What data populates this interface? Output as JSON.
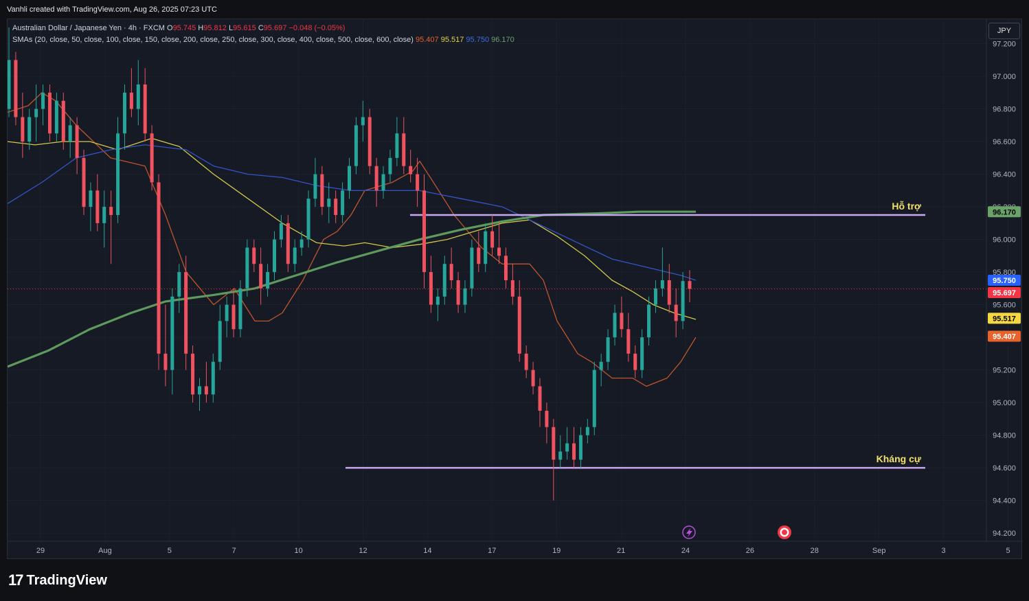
{
  "header": {
    "credit": "Vanhli created with TradingView.com, Aug 26, 2025 07:23 UTC"
  },
  "legend": {
    "symbol": "Australian Dollar / Japanese Yen · 4h · FXCM",
    "o_label": "O",
    "o": "95.745",
    "h_label": "H",
    "h": "95.812",
    "l_label": "L",
    "l": "95.615",
    "c_label": "C",
    "c": "95.697",
    "change": "−0.048 (−0.05%)",
    "sma_label": "SMAs (20, close, 50, close, 100, close, 150, close, 200, close, 250, close, 300, close, 400, close, 500, close, 600, close)",
    "sma_values": [
      {
        "value": "95.407",
        "color": "#e8622b"
      },
      {
        "value": "95.517",
        "color": "#e3d84a"
      },
      {
        "value": "95.750",
        "color": "#3a6fe0"
      },
      {
        "value": "96.170",
        "color": "#6aa36a"
      }
    ]
  },
  "currency_button": "JPY",
  "branding": {
    "logo_mark": "17",
    "logo_text": "TradingView"
  },
  "colors": {
    "up": "#26a69a",
    "down": "#f0525f",
    "background": "#161a25",
    "grid": "#222631",
    "level_line": "#c8a8f0",
    "annotation": "#f5e26a"
  },
  "chart_data": {
    "type": "candlestick",
    "title": "Australian Dollar / Japanese Yen · 4h · FXCM",
    "yaxis": {
      "ticks": [
        "97.200",
        "97.000",
        "96.800",
        "96.600",
        "96.400",
        "96.200",
        "96.000",
        "95.800",
        "95.600",
        "95.400",
        "95.200",
        "95.000",
        "94.800",
        "94.600",
        "94.400",
        "94.200"
      ],
      "ylim": [
        94.15,
        97.35
      ]
    },
    "xaxis": {
      "ticks": [
        "29",
        "Aug",
        "5",
        "7",
        "10",
        "12",
        "14",
        "17",
        "19",
        "21",
        "24",
        "26",
        "28",
        "Sep",
        "3",
        "5"
      ]
    },
    "price_labels": [
      {
        "value": "96.170",
        "color": "#6aa36a"
      },
      {
        "value": "95.750",
        "color": "#2962ff"
      },
      {
        "value": "95.697",
        "color": "#f23645"
      },
      {
        "value": "95.517",
        "color": "#f5d742"
      },
      {
        "value": "95.407",
        "color": "#e8622b"
      }
    ],
    "current_price": 95.697,
    "levels": [
      {
        "label": "Hỗ trợ",
        "value": 96.15
      },
      {
        "label": "Kháng cự",
        "value": 94.6
      }
    ],
    "candles": [
      {
        "o": 96.8,
        "h": 97.3,
        "l": 96.75,
        "c": 97.1
      },
      {
        "o": 97.1,
        "h": 97.15,
        "l": 96.7,
        "c": 96.75
      },
      {
        "o": 96.75,
        "h": 96.9,
        "l": 96.5,
        "c": 96.6
      },
      {
        "o": 96.6,
        "h": 96.8,
        "l": 96.55,
        "c": 96.75
      },
      {
        "o": 96.75,
        "h": 96.95,
        "l": 96.6,
        "c": 96.8
      },
      {
        "o": 96.8,
        "h": 96.95,
        "l": 96.7,
        "c": 96.9
      },
      {
        "o": 96.9,
        "h": 96.95,
        "l": 96.6,
        "c": 96.65
      },
      {
        "o": 96.65,
        "h": 96.9,
        "l": 96.6,
        "c": 96.85
      },
      {
        "o": 96.85,
        "h": 96.9,
        "l": 96.55,
        "c": 96.6
      },
      {
        "o": 96.6,
        "h": 96.75,
        "l": 96.5,
        "c": 96.7
      },
      {
        "o": 96.7,
        "h": 96.75,
        "l": 96.4,
        "c": 96.5
      },
      {
        "o": 96.5,
        "h": 96.55,
        "l": 96.15,
        "c": 96.2
      },
      {
        "o": 96.2,
        "h": 96.35,
        "l": 96.05,
        "c": 96.3
      },
      {
        "o": 96.3,
        "h": 96.4,
        "l": 96.05,
        "c": 96.1
      },
      {
        "o": 96.1,
        "h": 96.3,
        "l": 95.95,
        "c": 96.2
      },
      {
        "o": 96.2,
        "h": 96.3,
        "l": 95.85,
        "c": 96.15
      },
      {
        "o": 96.15,
        "h": 96.75,
        "l": 96.1,
        "c": 96.65
      },
      {
        "o": 96.65,
        "h": 96.95,
        "l": 96.55,
        "c": 96.9
      },
      {
        "o": 96.9,
        "h": 97.05,
        "l": 96.75,
        "c": 96.8
      },
      {
        "o": 96.8,
        "h": 97.1,
        "l": 96.7,
        "c": 96.95
      },
      {
        "o": 96.95,
        "h": 97.05,
        "l": 96.6,
        "c": 96.65
      },
      {
        "o": 96.65,
        "h": 96.7,
        "l": 96.3,
        "c": 96.35
      },
      {
        "o": 96.35,
        "h": 96.4,
        "l": 95.2,
        "c": 95.3
      },
      {
        "o": 95.3,
        "h": 95.6,
        "l": 95.1,
        "c": 95.2
      },
      {
        "o": 95.2,
        "h": 95.7,
        "l": 95.05,
        "c": 95.65
      },
      {
        "o": 95.65,
        "h": 95.85,
        "l": 95.55,
        "c": 95.8
      },
      {
        "o": 95.8,
        "h": 95.9,
        "l": 95.2,
        "c": 95.3
      },
      {
        "o": 95.3,
        "h": 95.35,
        "l": 95.0,
        "c": 95.05
      },
      {
        "o": 95.05,
        "h": 95.15,
        "l": 94.95,
        "c": 95.1
      },
      {
        "o": 95.1,
        "h": 95.25,
        "l": 95.0,
        "c": 95.05
      },
      {
        "o": 95.05,
        "h": 95.3,
        "l": 95.0,
        "c": 95.25
      },
      {
        "o": 95.25,
        "h": 95.6,
        "l": 95.2,
        "c": 95.5
      },
      {
        "o": 95.5,
        "h": 95.65,
        "l": 95.4,
        "c": 95.6
      },
      {
        "o": 95.6,
        "h": 95.7,
        "l": 95.4,
        "c": 95.45
      },
      {
        "o": 95.45,
        "h": 95.75,
        "l": 95.4,
        "c": 95.7
      },
      {
        "o": 95.7,
        "h": 96.0,
        "l": 95.65,
        "c": 95.95
      },
      {
        "o": 95.95,
        "h": 96.0,
        "l": 95.8,
        "c": 95.85
      },
      {
        "o": 95.85,
        "h": 95.95,
        "l": 95.6,
        "c": 95.7
      },
      {
        "o": 95.7,
        "h": 95.85,
        "l": 95.65,
        "c": 95.8
      },
      {
        "o": 95.8,
        "h": 96.05,
        "l": 95.75,
        "c": 96.0
      },
      {
        "o": 96.0,
        "h": 96.15,
        "l": 95.95,
        "c": 96.1
      },
      {
        "o": 96.1,
        "h": 96.15,
        "l": 95.8,
        "c": 95.85
      },
      {
        "o": 95.85,
        "h": 96.0,
        "l": 95.8,
        "c": 95.95
      },
      {
        "o": 95.95,
        "h": 96.05,
        "l": 95.9,
        "c": 96.0
      },
      {
        "o": 96.0,
        "h": 96.3,
        "l": 95.95,
        "c": 96.25
      },
      {
        "o": 96.25,
        "h": 96.5,
        "l": 96.2,
        "c": 96.4
      },
      {
        "o": 96.4,
        "h": 96.45,
        "l": 96.15,
        "c": 96.2
      },
      {
        "o": 96.2,
        "h": 96.35,
        "l": 96.1,
        "c": 96.25
      },
      {
        "o": 96.25,
        "h": 96.3,
        "l": 96.1,
        "c": 96.15
      },
      {
        "o": 96.15,
        "h": 96.35,
        "l": 96.1,
        "c": 96.3
      },
      {
        "o": 96.3,
        "h": 96.5,
        "l": 96.25,
        "c": 96.45
      },
      {
        "o": 96.45,
        "h": 96.75,
        "l": 96.4,
        "c": 96.7
      },
      {
        "o": 96.7,
        "h": 96.85,
        "l": 96.6,
        "c": 96.75
      },
      {
        "o": 96.75,
        "h": 96.8,
        "l": 96.4,
        "c": 96.45
      },
      {
        "o": 96.45,
        "h": 96.5,
        "l": 96.2,
        "c": 96.3
      },
      {
        "o": 96.3,
        "h": 96.45,
        "l": 96.25,
        "c": 96.4
      },
      {
        "o": 96.4,
        "h": 96.55,
        "l": 96.35,
        "c": 96.5
      },
      {
        "o": 96.5,
        "h": 96.75,
        "l": 96.45,
        "c": 96.65
      },
      {
        "o": 96.65,
        "h": 96.75,
        "l": 96.4,
        "c": 96.45
      },
      {
        "o": 96.45,
        "h": 96.55,
        "l": 96.35,
        "c": 96.4
      },
      {
        "o": 96.4,
        "h": 96.5,
        "l": 96.2,
        "c": 96.3
      },
      {
        "o": 96.3,
        "h": 96.4,
        "l": 95.7,
        "c": 95.8
      },
      {
        "o": 95.8,
        "h": 95.9,
        "l": 95.55,
        "c": 95.6
      },
      {
        "o": 95.6,
        "h": 95.7,
        "l": 95.5,
        "c": 95.65
      },
      {
        "o": 95.65,
        "h": 95.9,
        "l": 95.6,
        "c": 95.85
      },
      {
        "o": 95.85,
        "h": 95.95,
        "l": 95.7,
        "c": 95.75
      },
      {
        "o": 95.75,
        "h": 95.8,
        "l": 95.55,
        "c": 95.6
      },
      {
        "o": 95.6,
        "h": 95.75,
        "l": 95.55,
        "c": 95.7
      },
      {
        "o": 95.7,
        "h": 96.0,
        "l": 95.65,
        "c": 95.95
      },
      {
        "o": 95.95,
        "h": 96.05,
        "l": 95.8,
        "c": 95.85
      },
      {
        "o": 95.85,
        "h": 96.1,
        "l": 95.8,
        "c": 96.05
      },
      {
        "o": 96.05,
        "h": 96.15,
        "l": 95.9,
        "c": 95.95
      },
      {
        "o": 95.95,
        "h": 96.1,
        "l": 95.85,
        "c": 95.9
      },
      {
        "o": 95.9,
        "h": 95.95,
        "l": 95.7,
        "c": 95.75
      },
      {
        "o": 95.75,
        "h": 95.85,
        "l": 95.6,
        "c": 95.65
      },
      {
        "o": 95.65,
        "h": 95.75,
        "l": 95.25,
        "c": 95.3
      },
      {
        "o": 95.3,
        "h": 95.35,
        "l": 95.15,
        "c": 95.2
      },
      {
        "o": 95.2,
        "h": 95.25,
        "l": 95.05,
        "c": 95.1
      },
      {
        "o": 95.1,
        "h": 95.15,
        "l": 94.85,
        "c": 94.95
      },
      {
        "o": 94.95,
        "h": 95.0,
        "l": 94.75,
        "c": 94.85
      },
      {
        "o": 94.85,
        "h": 94.9,
        "l": 94.4,
        "c": 94.65
      },
      {
        "o": 94.65,
        "h": 94.8,
        "l": 94.6,
        "c": 94.7
      },
      {
        "o": 94.7,
        "h": 94.85,
        "l": 94.65,
        "c": 94.75
      },
      {
        "o": 94.75,
        "h": 94.85,
        "l": 94.6,
        "c": 94.65
      },
      {
        "o": 94.65,
        "h": 94.85,
        "l": 94.6,
        "c": 94.8
      },
      {
        "o": 94.8,
        "h": 94.9,
        "l": 94.75,
        "c": 94.85
      },
      {
        "o": 94.85,
        "h": 95.25,
        "l": 94.8,
        "c": 95.2
      },
      {
        "o": 95.2,
        "h": 95.3,
        "l": 95.1,
        "c": 95.25
      },
      {
        "o": 95.25,
        "h": 95.45,
        "l": 95.2,
        "c": 95.4
      },
      {
        "o": 95.4,
        "h": 95.6,
        "l": 95.35,
        "c": 95.55
      },
      {
        "o": 95.55,
        "h": 95.65,
        "l": 95.4,
        "c": 95.45
      },
      {
        "o": 95.45,
        "h": 95.55,
        "l": 95.25,
        "c": 95.3
      },
      {
        "o": 95.3,
        "h": 95.35,
        "l": 95.15,
        "c": 95.2
      },
      {
        "o": 95.2,
        "h": 95.45,
        "l": 95.15,
        "c": 95.4
      },
      {
        "o": 95.4,
        "h": 95.65,
        "l": 95.35,
        "c": 95.6
      },
      {
        "o": 95.6,
        "h": 95.75,
        "l": 95.55,
        "c": 95.7
      },
      {
        "o": 95.7,
        "h": 95.95,
        "l": 95.65,
        "c": 95.75
      },
      {
        "o": 95.75,
        "h": 95.85,
        "l": 95.55,
        "c": 95.6
      },
      {
        "o": 95.6,
        "h": 95.7,
        "l": 95.4,
        "c": 95.5
      },
      {
        "o": 95.5,
        "h": 95.8,
        "l": 95.45,
        "c": 95.745
      },
      {
        "o": 95.745,
        "h": 95.812,
        "l": 95.615,
        "c": 95.697
      }
    ],
    "sma_series": [
      {
        "name": "SMA 20",
        "color": "#c0552d",
        "values": [
          [
            0,
            96.78
          ],
          [
            30,
            96.82
          ],
          [
            50,
            96.9
          ],
          [
            70,
            96.85
          ],
          [
            100,
            96.7
          ],
          [
            150,
            96.5
          ],
          [
            200,
            96.45
          ],
          [
            230,
            96.15
          ],
          [
            260,
            95.8
          ],
          [
            300,
            95.6
          ],
          [
            330,
            95.7
          ],
          [
            360,
            95.5
          ],
          [
            380,
            95.5
          ],
          [
            400,
            95.55
          ],
          [
            430,
            95.75
          ],
          [
            460,
            96.0
          ],
          [
            480,
            96.05
          ],
          [
            500,
            96.15
          ],
          [
            520,
            96.3
          ],
          [
            560,
            96.35
          ],
          [
            590,
            96.42
          ],
          [
            600,
            96.48
          ],
          [
            620,
            96.35
          ],
          [
            650,
            96.15
          ],
          [
            690,
            95.95
          ],
          [
            720,
            95.85
          ],
          [
            760,
            95.85
          ],
          [
            780,
            95.75
          ],
          [
            800,
            95.5
          ],
          [
            830,
            95.3
          ],
          [
            850,
            95.25
          ],
          [
            880,
            95.15
          ],
          [
            910,
            95.15
          ],
          [
            930,
            95.1
          ],
          [
            960,
            95.15
          ],
          [
            980,
            95.25
          ],
          [
            1002,
            95.4
          ]
        ]
      },
      {
        "name": "SMA 50",
        "color": "#d3c84a",
        "values": [
          [
            0,
            96.6
          ],
          [
            40,
            96.58
          ],
          [
            80,
            96.6
          ],
          [
            120,
            96.6
          ],
          [
            160,
            96.55
          ],
          [
            210,
            96.62
          ],
          [
            250,
            96.57
          ],
          [
            300,
            96.4
          ],
          [
            350,
            96.25
          ],
          [
            400,
            96.1
          ],
          [
            450,
            95.98
          ],
          [
            490,
            95.96
          ],
          [
            520,
            95.98
          ],
          [
            560,
            95.95
          ],
          [
            600,
            95.97
          ],
          [
            640,
            96.0
          ],
          [
            680,
            96.05
          ],
          [
            720,
            96.1
          ],
          [
            760,
            96.12
          ],
          [
            800,
            96.02
          ],
          [
            840,
            95.9
          ],
          [
            880,
            95.75
          ],
          [
            910,
            95.68
          ],
          [
            940,
            95.6
          ],
          [
            970,
            95.55
          ],
          [
            1002,
            95.51
          ]
        ]
      },
      {
        "name": "SMA 100",
        "color": "#3355c8",
        "values": [
          [
            0,
            96.22
          ],
          [
            50,
            96.35
          ],
          [
            100,
            96.5
          ],
          [
            150,
            96.55
          ],
          [
            200,
            96.58
          ],
          [
            260,
            96.55
          ],
          [
            300,
            96.45
          ],
          [
            350,
            96.4
          ],
          [
            400,
            96.38
          ],
          [
            450,
            96.33
          ],
          [
            500,
            96.3
          ],
          [
            560,
            96.3
          ],
          [
            600,
            96.3
          ],
          [
            660,
            96.25
          ],
          [
            720,
            96.2
          ],
          [
            770,
            96.1
          ],
          [
            830,
            95.98
          ],
          [
            880,
            95.88
          ],
          [
            940,
            95.82
          ],
          [
            980,
            95.78
          ],
          [
            1002,
            95.75
          ]
        ]
      },
      {
        "name": "SMA 150",
        "color": "#5e9a5e",
        "values": [
          [
            0,
            95.22
          ],
          [
            60,
            95.32
          ],
          [
            120,
            95.45
          ],
          [
            180,
            95.55
          ],
          [
            230,
            95.62
          ],
          [
            300,
            95.66
          ],
          [
            360,
            95.7
          ],
          [
            420,
            95.78
          ],
          [
            480,
            95.86
          ],
          [
            540,
            95.93
          ],
          [
            600,
            96.0
          ],
          [
            660,
            96.06
          ],
          [
            720,
            96.11
          ],
          [
            780,
            96.15
          ],
          [
            860,
            96.16
          ],
          [
            920,
            96.17
          ],
          [
            1002,
            96.17
          ]
        ]
      }
    ]
  }
}
